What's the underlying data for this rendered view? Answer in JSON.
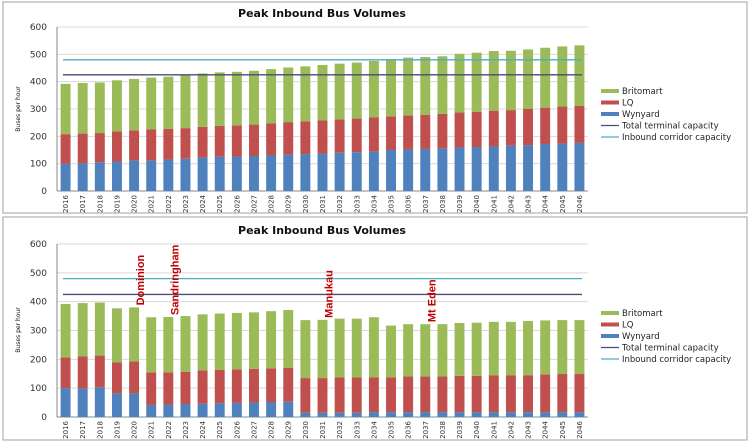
{
  "chart_data": [
    {
      "type": "bar",
      "stacked": true,
      "title": "Peak Inbound Bus Volumes",
      "ylabel": "Buses per hour",
      "xlabel": "",
      "ylim": [
        0,
        600
      ],
      "yticks": [
        0,
        100,
        200,
        300,
        400,
        500,
        600
      ],
      "grid": true,
      "legend_position": "right",
      "categories": [
        "2016",
        "2017",
        "2018",
        "2019",
        "2020",
        "2021",
        "2022",
        "2023",
        "2024",
        "2025",
        "2026",
        "2027",
        "2028",
        "2029",
        "2030",
        "2031",
        "2032",
        "2033",
        "2034",
        "2035",
        "2036",
        "2037",
        "2038",
        "2039",
        "2040",
        "2041",
        "2042",
        "2043",
        "2044",
        "2045",
        "2046"
      ],
      "series": [
        {
          "name": "Wynyard",
          "color": "#4F81BD",
          "values": [
            100,
            102,
            105,
            108,
            112,
            112,
            115,
            118,
            122,
            125,
            126,
            128,
            130,
            133,
            135,
            137,
            140,
            142,
            144,
            150,
            152,
            154,
            156,
            159,
            161,
            163,
            166,
            168,
            172,
            174,
            176
          ]
        },
        {
          "name": "LQ",
          "color": "#C0504D",
          "values": [
            108,
            108,
            107,
            110,
            110,
            113,
            112,
            112,
            113,
            113,
            114,
            115,
            117,
            119,
            120,
            121,
            122,
            123,
            125,
            123,
            125,
            125,
            126,
            128,
            129,
            131,
            130,
            132,
            133,
            135,
            135
          ]
        },
        {
          "name": "Britomart",
          "color": "#9BBB59",
          "values": [
            184,
            185,
            185,
            187,
            188,
            190,
            191,
            195,
            195,
            196,
            196,
            197,
            199,
            200,
            201,
            203,
            204,
            205,
            207,
            209,
            211,
            211,
            211,
            215,
            216,
            218,
            217,
            218,
            219,
            220,
            222
          ]
        }
      ],
      "lines": [
        {
          "name": "Total terminal capacity",
          "color": "#4B4A78",
          "value": 425
        },
        {
          "name": "Inbound corridor capacity",
          "color": "#4BACC6",
          "value": 480
        }
      ],
      "legend_order": [
        "Britomart",
        "LQ",
        "Wynyard",
        "Total terminal capacity",
        "Inbound corridor capacity"
      ],
      "annotations": []
    },
    {
      "type": "bar",
      "stacked": true,
      "title": "Peak Inbound Bus Volumes",
      "ylabel": "Buses per hour",
      "xlabel": "",
      "ylim": [
        0,
        600
      ],
      "yticks": [
        0,
        100,
        200,
        300,
        400,
        500,
        600
      ],
      "grid": true,
      "legend_position": "right",
      "categories": [
        "2016",
        "2017",
        "2018",
        "2019",
        "2020",
        "2021",
        "2022",
        "2023",
        "2024",
        "2025",
        "2026",
        "2027",
        "2028",
        "2029",
        "2030",
        "2031",
        "2032",
        "2033",
        "2034",
        "2035",
        "2036",
        "2037",
        "2038",
        "2039",
        "2040",
        "2041",
        "2042",
        "2043",
        "2044",
        "2045",
        "2046"
      ],
      "series": [
        {
          "name": "Wynyard",
          "color": "#4F81BD",
          "values": [
            100,
            100,
            103,
            82,
            82,
            42,
            43,
            45,
            46,
            48,
            49,
            50,
            52,
            53,
            15,
            15,
            15,
            15,
            17,
            17,
            17,
            17,
            17,
            17,
            17,
            17,
            17,
            17,
            17,
            17,
            17
          ]
        },
        {
          "name": "LQ",
          "color": "#C0504D",
          "values": [
            107,
            110,
            110,
            108,
            111,
            113,
            112,
            112,
            116,
            115,
            116,
            117,
            117,
            118,
            120,
            120,
            122,
            122,
            121,
            121,
            124,
            124,
            124,
            126,
            126,
            128,
            128,
            128,
            131,
            132,
            132
          ]
        },
        {
          "name": "Britomart",
          "color": "#9BBB59",
          "values": [
            185,
            185,
            184,
            187,
            187,
            191,
            192,
            193,
            194,
            196,
            196,
            196,
            198,
            200,
            201,
            202,
            204,
            204,
            208,
            179,
            181,
            181,
            181,
            183,
            184,
            185,
            185,
            188,
            187,
            187,
            187
          ]
        }
      ],
      "lines": [
        {
          "name": "Total terminal capacity",
          "color": "#4B4A78",
          "value": 425
        },
        {
          "name": "Inbound corridor capacity",
          "color": "#4BACC6",
          "value": 480
        }
      ],
      "legend_order": [
        "Britomart",
        "LQ",
        "Wynyard",
        "Total terminal capacity",
        "Inbound corridor capacity"
      ],
      "annotations": [
        {
          "text": "Dominion",
          "category": "2020"
        },
        {
          "text": "Sandringham",
          "category": "2022"
        },
        {
          "text": "Manukau",
          "category": "2031"
        },
        {
          "text": "Mt Eden",
          "category": "2037"
        }
      ]
    }
  ]
}
